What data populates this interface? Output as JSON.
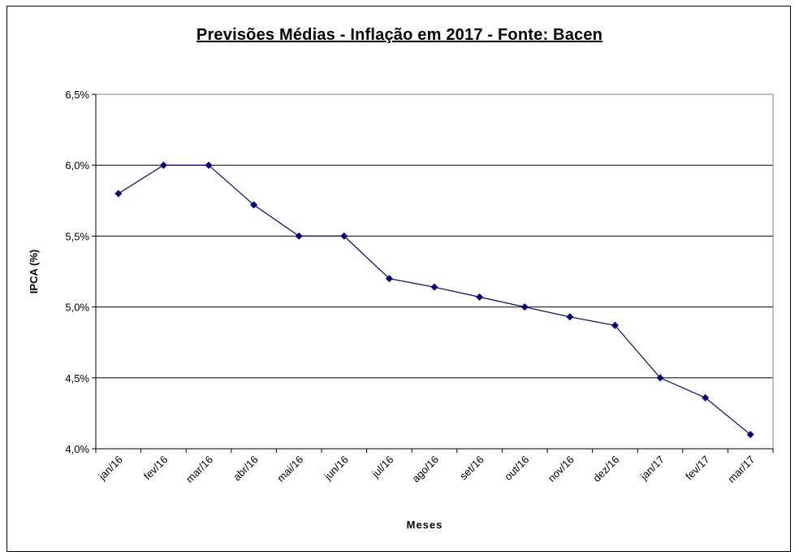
{
  "chart_data": {
    "type": "line",
    "title": "Previsões Médias - Inflação em 2017 - Fonte: Bacen",
    "xlabel": "Meses",
    "ylabel": "IPCA (%)",
    "categories": [
      "jan/16",
      "fev/16",
      "mar/16",
      "abr/16",
      "mai/16",
      "jun/16",
      "jul/16",
      "ago/16",
      "set/16",
      "out/16",
      "nov/16",
      "dez/16",
      "jan/17",
      "fev/17",
      "mar/17"
    ],
    "series": [
      {
        "values": [
          5.8,
          6.0,
          6.0,
          5.72,
          5.5,
          5.5,
          5.2,
          5.14,
          5.07,
          5.0,
          4.93,
          4.87,
          4.5,
          4.36,
          4.1
        ],
        "color": "#000080"
      }
    ],
    "ylim": [
      4.0,
      6.5
    ],
    "yticks": [
      4.0,
      4.5,
      5.0,
      5.5,
      6.0,
      6.5
    ],
    "yticklabels": [
      "4,0%",
      "4,5%",
      "5,0%",
      "5,5%",
      "6,0%",
      "6,5%"
    ],
    "grid": true
  }
}
